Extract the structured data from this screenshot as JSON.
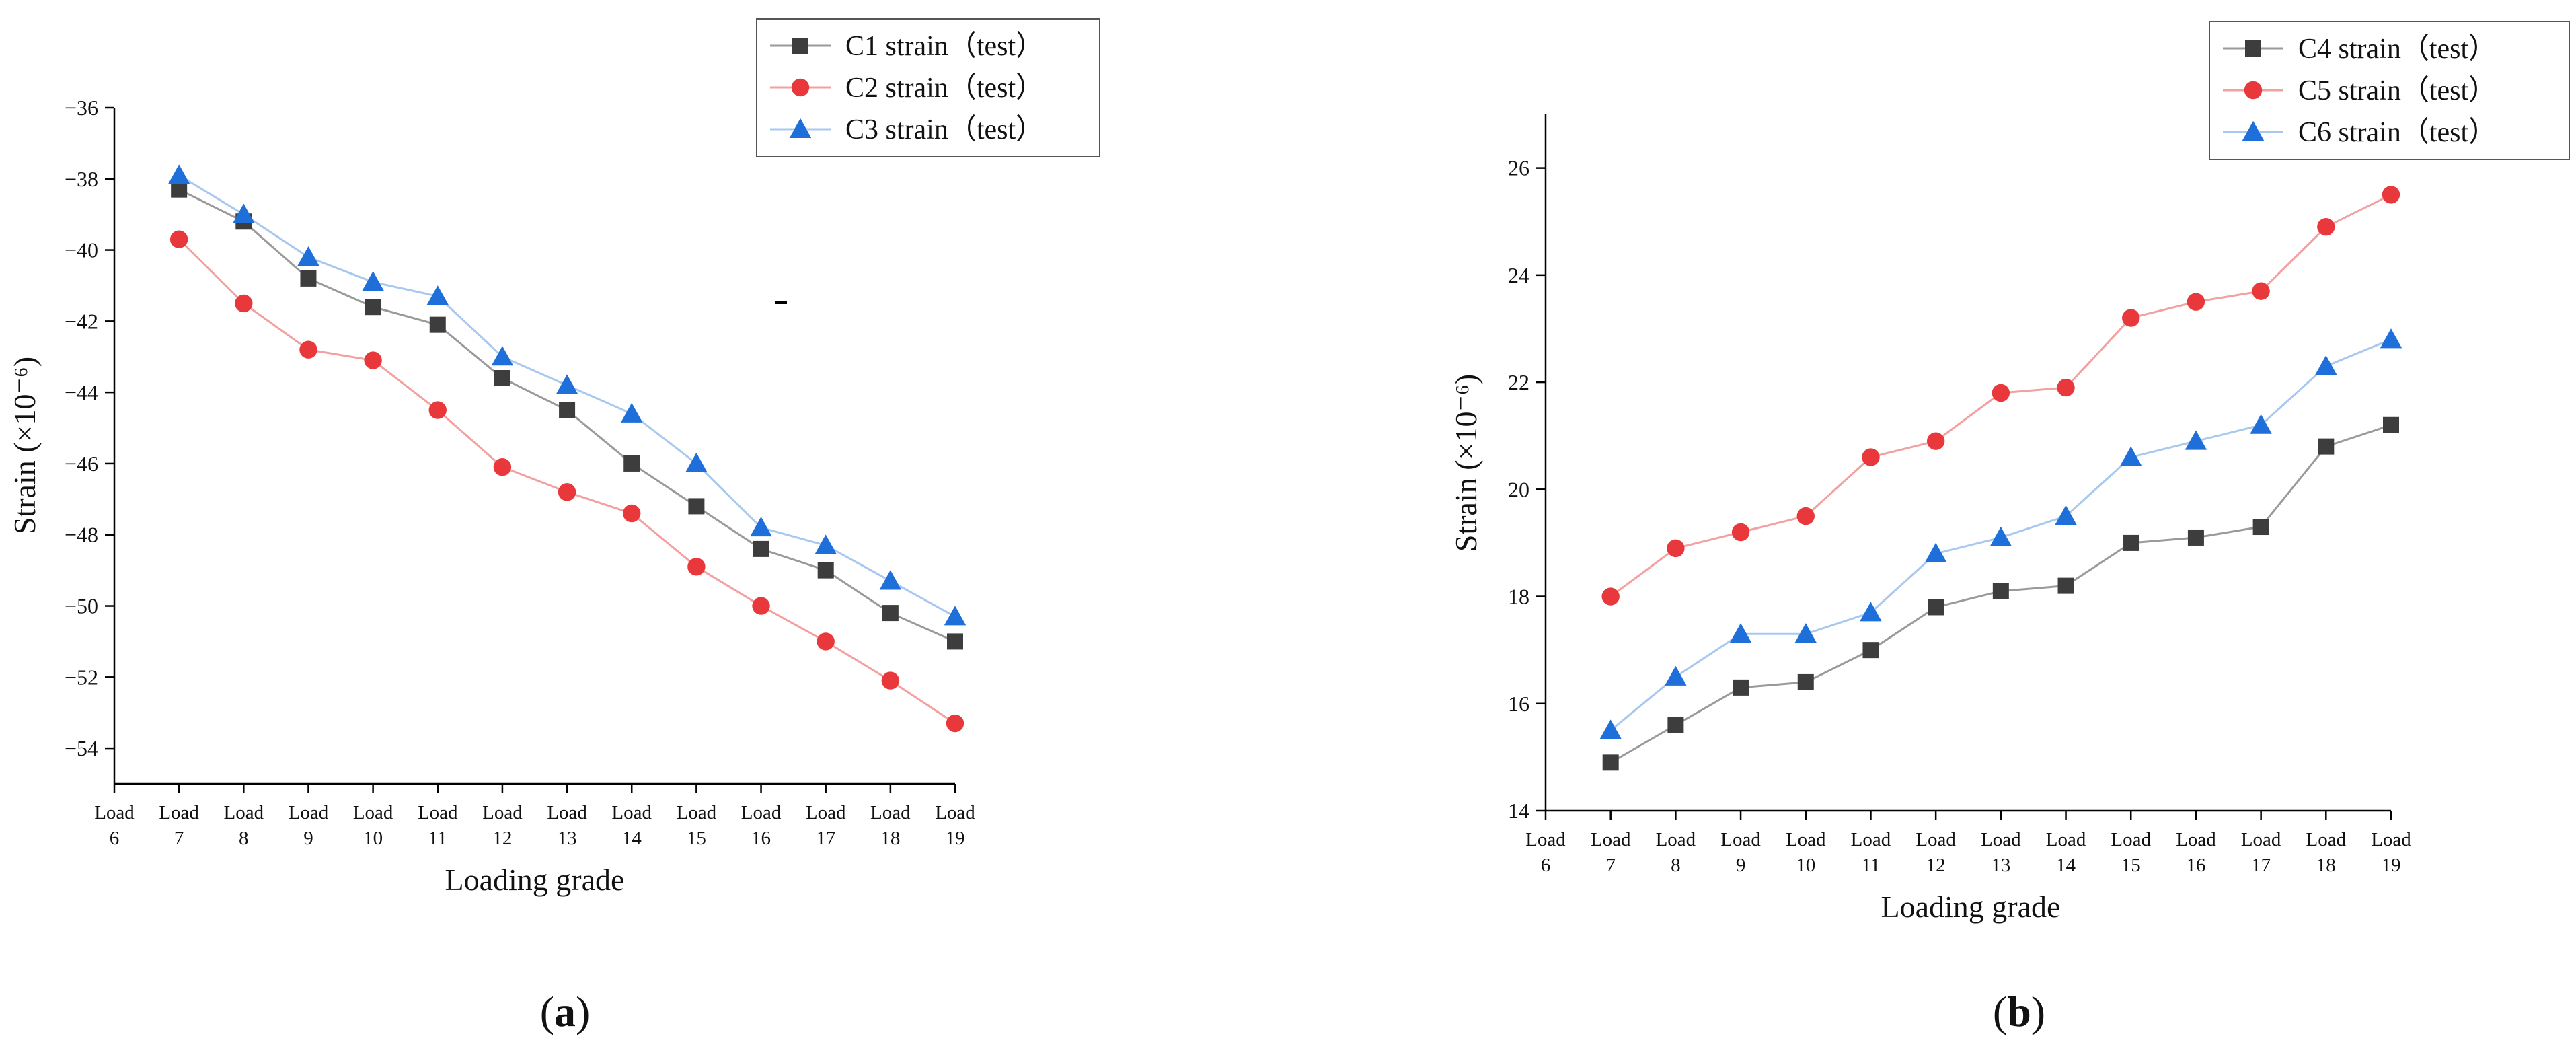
{
  "colors": {
    "series": [
      "#3d3d3d",
      "#e8383b",
      "#1e6fd9"
    ],
    "lines": [
      "#9a9a9a",
      "#f2a0a0",
      "#a8c8f0"
    ],
    "axis": "#000000"
  },
  "chart_data": [
    {
      "type": "line",
      "panel_label": "a",
      "xlabel": "Loading grade",
      "ylabel": "Strain (×10⁻⁶)",
      "x_tick_labels": [
        [
          "Load",
          "6"
        ],
        [
          "Load",
          "7"
        ],
        [
          "Load",
          "8"
        ],
        [
          "Load",
          "9"
        ],
        [
          "Load",
          "10"
        ],
        [
          "Load",
          "11"
        ],
        [
          "Load",
          "12"
        ],
        [
          "Load",
          "13"
        ],
        [
          "Load",
          "14"
        ],
        [
          "Load",
          "15"
        ],
        [
          "Load",
          "16"
        ],
        [
          "Load",
          "17"
        ],
        [
          "Load",
          "18"
        ],
        [
          "Load",
          "19"
        ]
      ],
      "x": [
        7,
        8,
        9,
        10,
        11,
        12,
        13,
        14,
        15,
        16,
        17,
        18,
        19
      ],
      "xlim": [
        6,
        19
      ],
      "ylim": [
        -55,
        -36
      ],
      "y_ticks": [
        -54,
        -52,
        -50,
        -48,
        -46,
        -44,
        -42,
        -40,
        -38,
        -36
      ],
      "legend_position": "top-right",
      "series": [
        {
          "name": "C1 strain（test）",
          "marker": "square",
          "values": [
            -38.3,
            -39.2,
            -40.8,
            -41.6,
            -42.1,
            -43.6,
            -44.5,
            -46.0,
            -47.2,
            -48.4,
            -49.0,
            -50.2,
            -51.0
          ]
        },
        {
          "name": "C2 strain（test）",
          "marker": "circle",
          "values": [
            -39.7,
            -41.5,
            -42.8,
            -43.1,
            -44.5,
            -46.1,
            -46.8,
            -47.4,
            -48.9,
            -50.0,
            -51.0,
            -52.1,
            -53.3
          ]
        },
        {
          "name": "C3 strain（test）",
          "marker": "triangle",
          "values": [
            -37.9,
            -39.0,
            -40.2,
            -40.9,
            -41.3,
            -43.0,
            -43.8,
            -44.6,
            -46.0,
            -47.8,
            -48.3,
            -49.3,
            -50.3
          ]
        }
      ]
    },
    {
      "type": "line",
      "panel_label": "b",
      "xlabel": "Loading grade",
      "ylabel": "Strain (×10⁻⁶)",
      "x_tick_labels": [
        [
          "Load",
          "6"
        ],
        [
          "Load",
          "7"
        ],
        [
          "Load",
          "8"
        ],
        [
          "Load",
          "9"
        ],
        [
          "Load",
          "10"
        ],
        [
          "Load",
          "11"
        ],
        [
          "Load",
          "12"
        ],
        [
          "Load",
          "13"
        ],
        [
          "Load",
          "14"
        ],
        [
          "Load",
          "15"
        ],
        [
          "Load",
          "16"
        ],
        [
          "Load",
          "17"
        ],
        [
          "Load",
          "18"
        ],
        [
          "Load",
          "19"
        ]
      ],
      "x": [
        7,
        8,
        9,
        10,
        11,
        12,
        13,
        14,
        15,
        16,
        17,
        18,
        19
      ],
      "xlim": [
        6,
        19
      ],
      "ylim": [
        14,
        27
      ],
      "y_ticks": [
        14,
        16,
        18,
        20,
        22,
        24,
        26
      ],
      "legend_position": "top-right",
      "series": [
        {
          "name": "C4 strain（test）",
          "marker": "square",
          "values": [
            14.9,
            15.6,
            16.3,
            16.4,
            17.0,
            17.8,
            18.1,
            18.2,
            19.0,
            19.1,
            19.3,
            20.8,
            21.2
          ]
        },
        {
          "name": "C5 strain（test）",
          "marker": "circle",
          "values": [
            18.0,
            18.9,
            19.2,
            19.5,
            20.6,
            20.9,
            21.8,
            21.9,
            23.2,
            23.5,
            23.7,
            24.9,
            25.5
          ]
        },
        {
          "name": "C6 strain（test）",
          "marker": "triangle",
          "values": [
            15.5,
            16.5,
            17.3,
            17.3,
            17.7,
            18.8,
            19.1,
            19.5,
            20.6,
            20.9,
            21.2,
            22.3,
            22.8
          ]
        }
      ]
    }
  ]
}
